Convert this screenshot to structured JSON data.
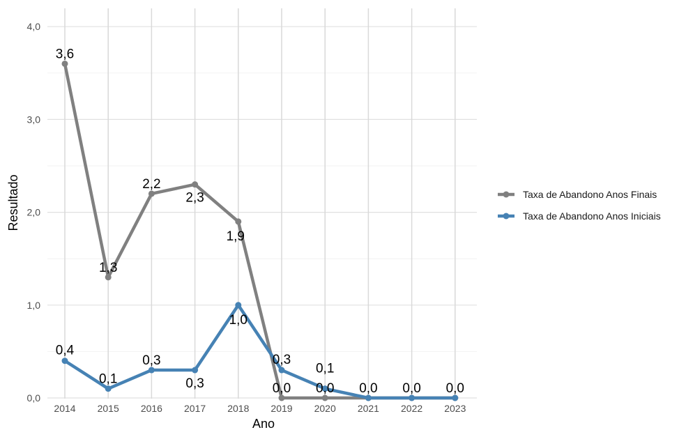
{
  "chart_data": {
    "type": "line",
    "title": "",
    "xlabel": "Ano",
    "ylabel": "Resultado",
    "x": [
      "2014",
      "2015",
      "2016",
      "2017",
      "2018",
      "2019",
      "2020",
      "2021",
      "2022",
      "2023"
    ],
    "ylim": [
      0,
      4.2
    ],
    "yticks": [
      "0,0",
      "1,0",
      "2,0",
      "3,0",
      "4,0"
    ],
    "grid": true,
    "legend_position": "right",
    "series": [
      {
        "name": "Taxa de Abandono Anos Finais",
        "color": "#808080",
        "values": [
          3.6,
          1.3,
          2.2,
          2.3,
          1.9,
          0.0,
          0.0,
          0.0,
          0.0,
          0.0
        ],
        "labels": [
          "3,6",
          "1,3",
          "2,2",
          "2,3",
          "1,9",
          "0,0",
          "0,0",
          "0,0",
          "0,0",
          "0,0"
        ]
      },
      {
        "name": "Taxa de Abandono Anos Iniciais",
        "color": "#4682B4",
        "values": [
          0.4,
          0.1,
          0.3,
          0.3,
          1.0,
          0.3,
          0.1,
          0.0,
          0.0,
          0.0
        ],
        "labels": [
          "0,4",
          "0,1",
          "0,3",
          "0,3",
          "1,0",
          "0,3",
          "0,1",
          "0,0",
          "0,0",
          "0,0"
        ]
      }
    ]
  }
}
